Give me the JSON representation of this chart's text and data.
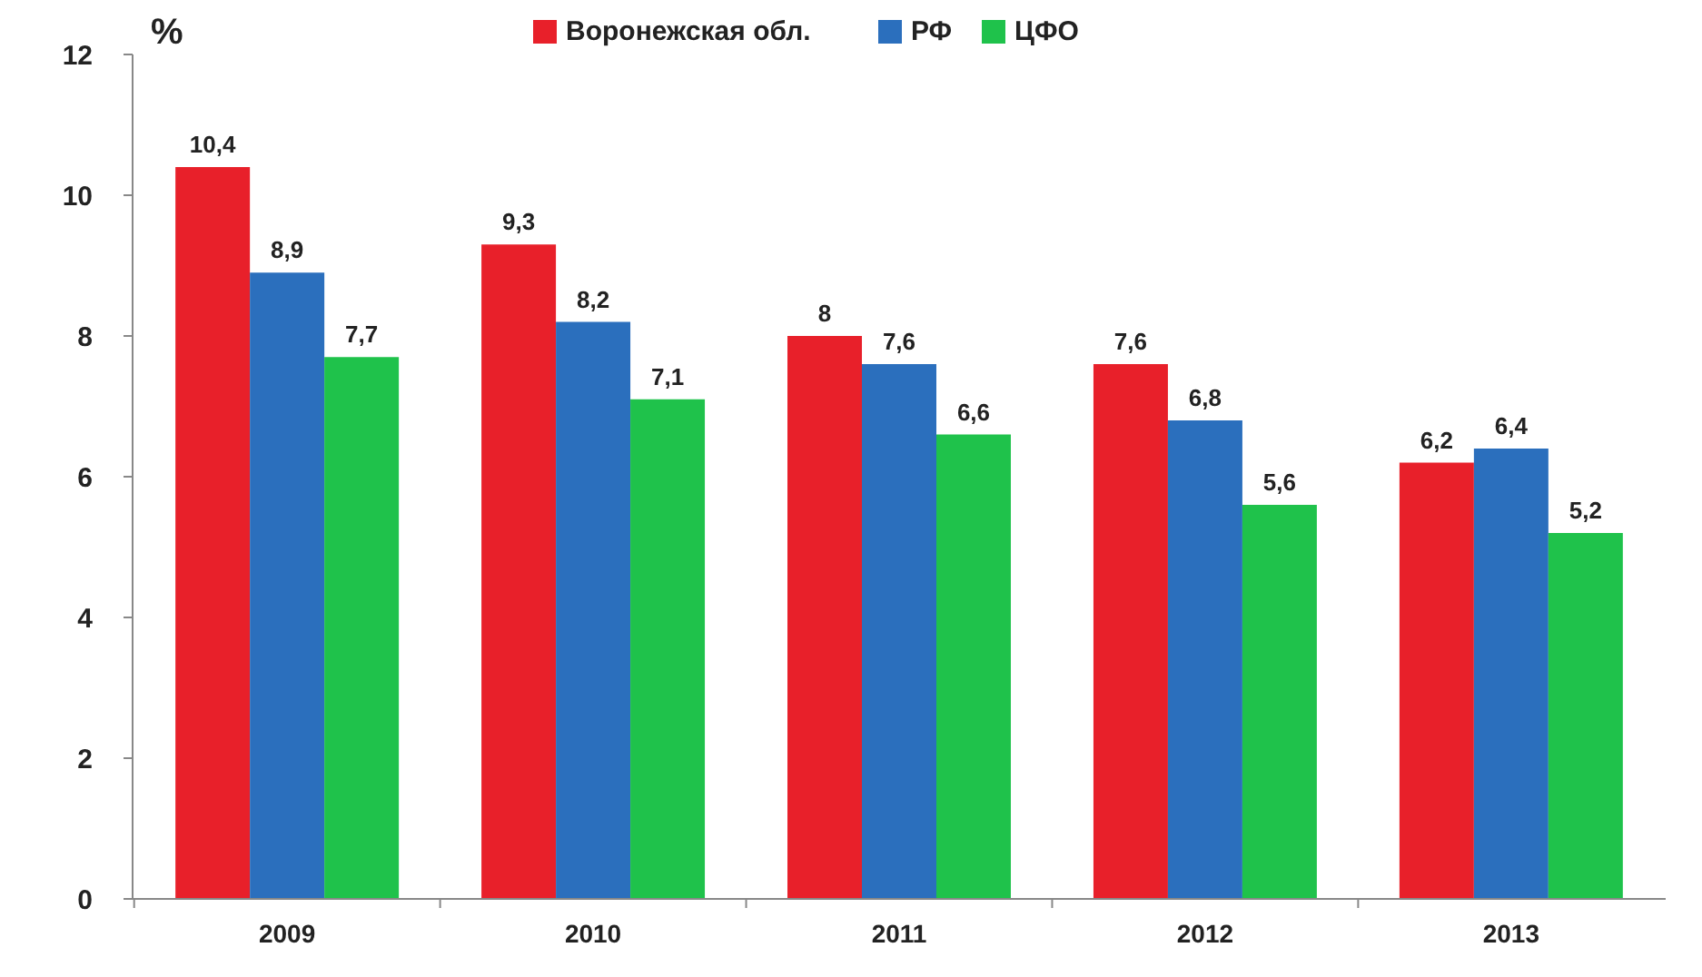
{
  "chart_data": {
    "type": "bar",
    "ylabel": "%",
    "categories": [
      "2009",
      "2010",
      "2011",
      "2012",
      "2013"
    ],
    "series": [
      {
        "name": "Воронежская обл.",
        "color": "#e8202a",
        "values": [
          10.4,
          9.3,
          8,
          7.6,
          6.2
        ],
        "value_labels": [
          "10,4",
          "9,3",
          "8",
          "7,6",
          "6,2"
        ]
      },
      {
        "name": "РФ",
        "color": "#2b6fbd",
        "values": [
          8.9,
          8.2,
          7.6,
          6.8,
          6.4
        ],
        "value_labels": [
          "8,9",
          "8,2",
          "7,6",
          "6,8",
          "6,4"
        ]
      },
      {
        "name": "ЦФО",
        "color": "#1fc24b",
        "values": [
          7.7,
          7.1,
          6.6,
          5.6,
          5.2
        ],
        "value_labels": [
          "7,7",
          "7,1",
          "6,6",
          "5,6",
          "5,2"
        ]
      }
    ],
    "ylim": [
      0,
      12
    ],
    "yticks": [
      0,
      2,
      4,
      6,
      8,
      10,
      12
    ],
    "grid": false,
    "legend": "top"
  }
}
